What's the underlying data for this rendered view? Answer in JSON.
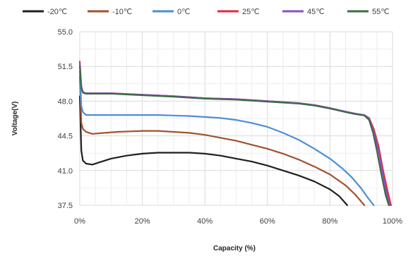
{
  "chart_data": {
    "type": "line",
    "title": "",
    "xlabel": "Capacity (%)",
    "ylabel": "Voltage(V)",
    "xlim": [
      0,
      100
    ],
    "ylim": [
      37.5,
      55.0
    ],
    "x_ticks": [
      0,
      20,
      40,
      60,
      80,
      100
    ],
    "x_tick_labels": [
      "0%",
      "20%",
      "40%",
      "60%",
      "80%",
      "100%"
    ],
    "y_ticks": [
      37.5,
      41.0,
      44.5,
      48.0,
      51.5,
      55.0
    ],
    "y_tick_labels": [
      "37.5",
      "41.0",
      "44.5",
      "48.0",
      "51.5",
      "55.0"
    ],
    "grid": true,
    "legend_position": "top",
    "series": [
      {
        "name": "-20℃",
        "color": "#1f1f1f",
        "x": [
          0,
          0.5,
          1,
          2,
          4,
          6,
          10,
          15,
          20,
          25,
          30,
          35,
          40,
          45,
          50,
          55,
          60,
          65,
          70,
          75,
          80,
          83,
          85.5
        ],
        "y": [
          48.5,
          43.0,
          42.0,
          41.7,
          41.6,
          41.8,
          42.2,
          42.5,
          42.7,
          42.8,
          42.8,
          42.8,
          42.7,
          42.5,
          42.2,
          41.9,
          41.5,
          41.0,
          40.5,
          39.9,
          39.1,
          38.4,
          37.5
        ]
      },
      {
        "name": "-10℃",
        "color": "#a0522d",
        "x": [
          0,
          0.5,
          1,
          2,
          4,
          8,
          12,
          16,
          20,
          25,
          30,
          35,
          40,
          45,
          50,
          55,
          60,
          65,
          70,
          75,
          80,
          85,
          88,
          91
        ],
        "y": [
          50.5,
          45.8,
          45.2,
          44.9,
          44.7,
          44.8,
          44.9,
          44.95,
          45.0,
          45.0,
          44.9,
          44.8,
          44.6,
          44.3,
          44.0,
          43.6,
          43.2,
          42.7,
          42.1,
          41.4,
          40.6,
          39.5,
          38.6,
          37.5
        ]
      },
      {
        "name": "0℃",
        "color": "#4a8ed8",
        "x": [
          0,
          0.5,
          1,
          2,
          4,
          8,
          15,
          20,
          25,
          30,
          35,
          40,
          45,
          50,
          55,
          60,
          65,
          70,
          75,
          80,
          84,
          87,
          90,
          92,
          94
        ],
        "y": [
          51.0,
          47.5,
          46.9,
          46.6,
          46.6,
          46.6,
          46.6,
          46.6,
          46.6,
          46.55,
          46.5,
          46.4,
          46.3,
          46.1,
          45.8,
          45.4,
          44.8,
          44.1,
          43.2,
          42.2,
          41.2,
          40.3,
          39.2,
          38.3,
          37.5
        ]
      },
      {
        "name": "25℃",
        "color": "#e8283c",
        "x": [
          0,
          0.5,
          1,
          2,
          5,
          10,
          20,
          30,
          40,
          50,
          60,
          70,
          75,
          80,
          85,
          88,
          91,
          92.5,
          94,
          95.5,
          97,
          98.5,
          99.5
        ],
        "y": [
          52.0,
          49.5,
          48.9,
          48.8,
          48.8,
          48.8,
          48.65,
          48.5,
          48.3,
          48.2,
          48.0,
          47.8,
          47.6,
          47.3,
          46.9,
          46.7,
          46.6,
          46.3,
          45.2,
          43.5,
          41.0,
          38.8,
          37.5
        ]
      },
      {
        "name": "45℃",
        "color": "#8a4fc9",
        "x": [
          0,
          0.5,
          1,
          2,
          5,
          10,
          20,
          30,
          40,
          50,
          60,
          70,
          75,
          80,
          85,
          88,
          91,
          92.5,
          94,
          95.5,
          97,
          98.2,
          99.2
        ],
        "y": [
          51.8,
          49.4,
          48.9,
          48.8,
          48.8,
          48.8,
          48.65,
          48.5,
          48.3,
          48.2,
          48.0,
          47.8,
          47.6,
          47.3,
          46.95,
          46.75,
          46.6,
          46.2,
          44.9,
          43.0,
          40.5,
          38.6,
          37.5
        ]
      },
      {
        "name": "55℃",
        "color": "#3d6b45",
        "x": [
          0,
          0.5,
          1,
          2,
          5,
          10,
          20,
          30,
          40,
          50,
          60,
          70,
          75,
          80,
          85,
          88,
          91,
          92.5,
          93.8,
          95,
          96.5,
          97.8,
          98.8
        ],
        "y": [
          51.5,
          49.3,
          48.85,
          48.75,
          48.75,
          48.75,
          48.6,
          48.45,
          48.25,
          48.15,
          47.95,
          47.75,
          47.55,
          47.25,
          46.9,
          46.7,
          46.55,
          46.1,
          44.8,
          43.0,
          40.5,
          38.5,
          37.5
        ]
      }
    ]
  }
}
